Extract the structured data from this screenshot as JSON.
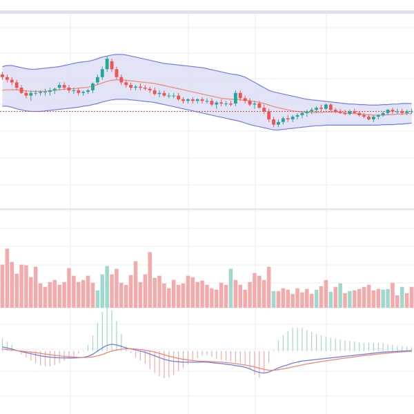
{
  "chart_data": [
    {
      "panel": "price",
      "type": "candlestick",
      "indicators": [
        "bollinger-bands",
        "moving-average"
      ],
      "ohlc": [
        [
          163.5,
          164.0,
          162.5,
          163.0
        ],
        [
          163.0,
          163.5,
          162.0,
          162.5
        ],
        [
          162.5,
          163.0,
          161.5,
          162.0
        ],
        [
          162.0,
          162.5,
          160.5,
          161.0
        ],
        [
          161.0,
          161.5,
          159.8,
          160.0
        ],
        [
          160.0,
          160.5,
          159.0,
          159.5
        ],
        [
          159.5,
          160.5,
          158.5,
          160.0
        ],
        [
          160.0,
          160.5,
          159.5,
          160.0
        ],
        [
          160.0,
          160.5,
          159.5,
          160.2
        ],
        [
          160.2,
          160.8,
          159.5,
          160.2
        ],
        [
          160.2,
          161.0,
          159.5,
          160.5
        ],
        [
          160.5,
          161.0,
          159.8,
          160.8
        ],
        [
          161.0,
          162.0,
          160.5,
          161.5
        ],
        [
          161.5,
          162.0,
          160.5,
          161.0
        ],
        [
          161.0,
          161.5,
          160.0,
          160.5
        ],
        [
          160.5,
          161.0,
          159.8,
          160.5
        ],
        [
          160.5,
          161.0,
          159.5,
          160.0
        ],
        [
          160.0,
          160.5,
          159.5,
          160.2
        ],
        [
          160.2,
          160.8,
          159.8,
          160.5
        ],
        [
          160.5,
          162.0,
          160.0,
          161.8
        ],
        [
          162.0,
          163.5,
          161.5,
          163.0
        ],
        [
          163.0,
          165.0,
          162.5,
          164.5
        ],
        [
          164.5,
          167.0,
          164.0,
          166.5
        ],
        [
          166.0,
          166.5,
          164.0,
          164.5
        ],
        [
          164.5,
          165.0,
          162.5,
          163.0
        ],
        [
          163.0,
          163.5,
          161.5,
          162.0
        ],
        [
          162.0,
          162.5,
          161.0,
          161.5
        ],
        [
          161.5,
          162.0,
          160.5,
          161.0
        ],
        [
          161.0,
          161.5,
          160.5,
          161.2
        ],
        [
          161.2,
          161.8,
          160.5,
          161.0
        ],
        [
          161.0,
          161.5,
          160.5,
          160.8
        ],
        [
          160.8,
          161.2,
          160.0,
          160.5
        ],
        [
          160.5,
          161.0,
          159.5,
          159.8
        ],
        [
          159.8,
          160.5,
          159.2,
          160.0
        ],
        [
          160.0,
          160.5,
          159.2,
          159.5
        ],
        [
          159.5,
          160.0,
          159.0,
          159.5
        ],
        [
          159.5,
          160.0,
          159.0,
          159.5
        ],
        [
          159.5,
          160.0,
          158.5,
          158.8
        ],
        [
          158.8,
          159.2,
          158.0,
          158.5
        ],
        [
          158.5,
          159.0,
          158.0,
          158.8
        ],
        [
          158.8,
          159.2,
          158.0,
          158.5
        ],
        [
          158.5,
          159.0,
          158.0,
          158.8
        ],
        [
          158.8,
          159.2,
          158.0,
          158.5
        ],
        [
          158.5,
          159.0,
          158.0,
          158.5
        ],
        [
          158.5,
          159.0,
          157.5,
          157.8
        ],
        [
          157.8,
          158.5,
          157.0,
          158.2
        ],
        [
          158.2,
          158.8,
          157.5,
          158.0
        ],
        [
          158.0,
          158.5,
          157.5,
          158.0
        ],
        [
          158.0,
          158.5,
          157.5,
          157.8
        ],
        [
          158.0,
          160.5,
          157.5,
          160.0
        ],
        [
          160.0,
          160.5,
          158.5,
          159.0
        ],
        [
          159.0,
          159.5,
          158.0,
          158.5
        ],
        [
          158.5,
          159.0,
          157.5,
          157.8
        ],
        [
          157.8,
          158.5,
          157.0,
          158.0
        ],
        [
          158.0,
          158.5,
          157.0,
          157.2
        ],
        [
          157.2,
          157.8,
          156.0,
          156.5
        ],
        [
          156.5,
          157.0,
          154.5,
          155.0
        ],
        [
          155.0,
          155.5,
          153.5,
          154.0
        ],
        [
          154.0,
          155.0,
          153.5,
          154.5
        ],
        [
          154.5,
          155.5,
          154.0,
          155.2
        ],
        [
          155.2,
          155.8,
          154.5,
          155.0
        ],
        [
          155.0,
          155.8,
          154.5,
          155.5
        ],
        [
          155.5,
          156.2,
          155.0,
          155.8
        ],
        [
          155.8,
          156.5,
          155.2,
          156.2
        ],
        [
          156.2,
          156.8,
          155.5,
          156.5
        ],
        [
          156.5,
          157.2,
          156.0,
          156.8
        ],
        [
          156.8,
          157.5,
          156.2,
          157.2
        ],
        [
          157.2,
          157.8,
          156.5,
          157.0
        ],
        [
          157.0,
          158.0,
          156.8,
          157.8
        ],
        [
          157.8,
          158.0,
          156.5,
          156.8
        ],
        [
          156.8,
          157.2,
          156.2,
          156.5
        ],
        [
          156.5,
          157.0,
          156.0,
          156.2
        ],
        [
          156.2,
          156.8,
          155.8,
          156.0
        ],
        [
          156.0,
          156.8,
          155.8,
          156.5
        ],
        [
          156.5,
          157.0,
          156.0,
          156.2
        ],
        [
          156.2,
          156.5,
          155.5,
          155.8
        ],
        [
          155.8,
          156.2,
          155.2,
          155.5
        ],
        [
          155.5,
          155.8,
          154.8,
          155.0
        ],
        [
          155.0,
          155.8,
          154.5,
          155.5
        ],
        [
          155.5,
          156.0,
          155.0,
          155.8
        ],
        [
          155.8,
          156.5,
          155.5,
          156.2
        ],
        [
          156.2,
          157.0,
          155.8,
          156.8
        ],
        [
          156.8,
          157.2,
          156.0,
          156.5
        ],
        [
          156.5,
          157.0,
          156.0,
          156.5
        ],
        [
          156.5,
          157.0,
          155.8,
          156.2
        ],
        [
          156.2,
          156.8,
          155.8,
          156.5
        ],
        [
          156.5,
          157.0,
          156.0,
          156.5
        ]
      ],
      "mid_band": [
        160.5,
        160.6,
        160.6,
        160.6,
        160.5,
        160.4,
        160.3,
        160.3,
        160.3,
        160.3,
        160.4,
        160.5,
        160.6,
        160.7,
        160.8,
        160.8,
        160.9,
        161.0,
        161.1,
        161.3,
        161.6,
        161.9,
        162.2,
        162.4,
        162.5,
        162.5,
        162.4,
        162.3,
        162.2,
        162.1,
        162.0,
        161.9,
        161.8,
        161.6,
        161.4,
        161.2,
        161.0,
        160.8,
        160.6,
        160.4,
        160.2,
        160.0,
        159.8,
        159.6,
        159.4,
        159.2,
        159.0,
        158.9,
        158.8,
        158.8,
        158.7,
        158.6,
        158.5,
        158.4,
        158.2,
        158.0,
        157.7,
        157.4,
        157.2,
        157.0,
        156.8,
        156.6,
        156.5,
        156.4,
        156.3,
        156.3,
        156.3,
        156.3,
        156.4,
        156.4,
        156.4,
        156.3,
        156.2,
        156.2,
        156.1,
        156.0,
        155.9,
        155.9,
        155.8,
        155.8,
        155.8,
        155.9,
        155.9,
        156.0,
        156.0,
        156.1,
        156.1
      ],
      "upper_band": [
        165.0,
        165.2,
        165.2,
        165.0,
        164.8,
        164.6,
        164.5,
        164.5,
        164.6,
        164.7,
        164.8,
        164.9,
        165.0,
        165.2,
        165.4,
        165.6,
        165.8,
        165.9,
        166.0,
        166.2,
        166.5,
        166.8,
        167.0,
        167.2,
        167.3,
        167.3,
        167.2,
        167.0,
        166.8,
        166.6,
        166.4,
        166.2,
        166.0,
        165.8,
        165.6,
        165.5,
        165.4,
        165.3,
        165.2,
        165.1,
        165.0,
        164.9,
        164.8,
        164.6,
        164.4,
        164.2,
        164.0,
        163.8,
        163.6,
        163.5,
        163.3,
        163.0,
        162.5,
        162.0,
        161.5,
        161.0,
        160.5,
        160.2,
        160.0,
        159.8,
        159.6,
        159.4,
        159.2,
        159.0,
        158.8,
        158.7,
        158.6,
        158.5,
        158.4,
        158.3,
        158.2,
        158.1,
        158.0,
        157.9,
        157.9,
        157.8,
        157.8,
        157.7,
        157.7,
        157.7,
        157.8,
        157.8,
        157.9,
        157.9,
        158.0,
        158.0,
        158.0
      ],
      "lower_band": [
        157.5,
        157.5,
        157.3,
        157.0,
        156.8,
        156.6,
        156.5,
        156.5,
        156.5,
        156.6,
        156.7,
        156.8,
        156.9,
        157.0,
        157.1,
        157.2,
        157.3,
        157.5,
        157.6,
        157.8,
        158.0,
        158.3,
        158.5,
        158.7,
        158.8,
        158.8,
        158.8,
        158.7,
        158.6,
        158.5,
        158.4,
        158.3,
        158.2,
        158.0,
        157.8,
        157.6,
        157.4,
        157.2,
        157.0,
        156.8,
        156.6,
        156.4,
        156.2,
        156.0,
        155.8,
        155.6,
        155.4,
        155.2,
        155.0,
        154.8,
        154.6,
        154.3,
        154.0,
        153.8,
        153.6,
        153.4,
        153.2,
        153.0,
        153.0,
        153.1,
        153.2,
        153.3,
        153.4,
        153.5,
        153.6,
        153.7,
        153.8,
        153.8,
        153.9,
        153.9,
        153.9,
        153.9,
        153.9,
        153.9,
        153.9,
        153.9,
        153.9,
        153.9,
        153.9,
        153.9,
        154.0,
        154.0,
        154.0,
        154.1,
        154.1,
        154.2,
        154.3
      ],
      "reference_line": 156.5,
      "ylim": [
        138,
        175
      ],
      "colors": {
        "up": "#26a69a",
        "down": "#ef5350",
        "band_line": "#6f7de8",
        "band_fill": "#dcdcf5",
        "mid_line": "#f0866f",
        "reference": "#d04848"
      }
    },
    {
      "panel": "volume",
      "type": "bar",
      "values": [
        62,
        85,
        66,
        49,
        62,
        61,
        44,
        59,
        35,
        30,
        37,
        40,
        33,
        37,
        57,
        46,
        37,
        40,
        46,
        36,
        25,
        48,
        60,
        48,
        56,
        36,
        33,
        47,
        67,
        37,
        48,
        80,
        43,
        46,
        35,
        28,
        40,
        33,
        35,
        46,
        44,
        37,
        39,
        33,
        28,
        26,
        36,
        33,
        56,
        40,
        33,
        26,
        37,
        50,
        46,
        40,
        59,
        24,
        24,
        28,
        26,
        20,
        28,
        22,
        27,
        20,
        26,
        31,
        40,
        23,
        30,
        35,
        21,
        24,
        25,
        27,
        30,
        33,
        25,
        27,
        26,
        27,
        36,
        18,
        30,
        21,
        30
      ],
      "directions": [
        "down",
        "down",
        "down",
        "down",
        "down",
        "down",
        "down",
        "down",
        "down",
        "down",
        "down",
        "down",
        "down",
        "down",
        "down",
        "down",
        "down",
        "down",
        "down",
        "down",
        "up",
        "up",
        "up",
        "down",
        "down",
        "down",
        "down",
        "down",
        "down",
        "down",
        "down",
        "down",
        "down",
        "down",
        "down",
        "down",
        "down",
        "down",
        "down",
        "down",
        "down",
        "down",
        "down",
        "down",
        "down",
        "down",
        "down",
        "down",
        "up",
        "down",
        "down",
        "down",
        "down",
        "down",
        "down",
        "down",
        "down",
        "up",
        "down",
        "down",
        "down",
        "down",
        "down",
        "down",
        "down",
        "down",
        "up",
        "down",
        "down",
        "up",
        "down",
        "up",
        "down",
        "up",
        "down",
        "down",
        "down",
        "down",
        "down",
        "down",
        "up",
        "up",
        "down",
        "down",
        "up",
        "down",
        "down"
      ],
      "ylim": [
        0,
        140
      ]
    },
    {
      "panel": "macd",
      "type": "line",
      "series": [
        {
          "values": [
            0.4,
            0.3,
            0.2,
            0.05,
            -0.05,
            -0.15,
            -0.25,
            -0.35,
            -0.45,
            -0.52,
            -0.58,
            -0.62,
            -0.64,
            -0.65,
            -0.66,
            -0.66,
            -0.64,
            -0.6,
            -0.5,
            -0.3,
            0.0,
            0.3,
            0.55,
            0.65,
            0.58,
            0.45,
            0.3,
            0.2,
            0.1,
            0.0,
            -0.12,
            -0.28,
            -0.45,
            -0.62,
            -0.78,
            -0.9,
            -0.98,
            -1.02,
            -1.05,
            -1.06,
            -1.06,
            -1.05,
            -1.04,
            -1.05,
            -1.1,
            -1.15,
            -1.2,
            -1.25,
            -1.3,
            -1.38,
            -1.45,
            -1.55,
            -1.7,
            -1.9,
            -2.05,
            -2.1,
            -2.0,
            -1.8,
            -1.6,
            -1.45,
            -1.3,
            -1.15,
            -1.05,
            -0.95,
            -0.9,
            -0.85,
            -0.8,
            -0.75,
            -0.7,
            -0.65,
            -0.6,
            -0.55,
            -0.5,
            -0.45,
            -0.4,
            -0.35,
            -0.3,
            -0.25,
            -0.2,
            -0.15,
            -0.1,
            -0.08,
            -0.05,
            -0.03,
            0.0,
            0.02,
            0.04
          ],
          "color": "#6f7de8"
        },
        {
          "values": [
            0.2,
            0.15,
            0.1,
            0.05,
            0.0,
            -0.05,
            -0.1,
            -0.16,
            -0.22,
            -0.28,
            -0.34,
            -0.4,
            -0.45,
            -0.5,
            -0.54,
            -0.57,
            -0.6,
            -0.61,
            -0.6,
            -0.55,
            -0.45,
            -0.32,
            -0.15,
            0.0,
            0.1,
            0.18,
            0.22,
            0.23,
            0.2,
            0.15,
            0.08,
            0.0,
            -0.1,
            -0.22,
            -0.35,
            -0.48,
            -0.6,
            -0.7,
            -0.78,
            -0.85,
            -0.9,
            -0.94,
            -0.97,
            -0.99,
            -1.01,
            -1.03,
            -1.06,
            -1.1,
            -1.14,
            -1.2,
            -1.26,
            -1.33,
            -1.42,
            -1.52,
            -1.63,
            -1.75,
            -1.82,
            -1.82,
            -1.77,
            -1.7,
            -1.62,
            -1.52,
            -1.42,
            -1.32,
            -1.23,
            -1.15,
            -1.07,
            -1.0,
            -0.93,
            -0.86,
            -0.8,
            -0.73,
            -0.67,
            -0.61,
            -0.55,
            -0.49,
            -0.43,
            -0.38,
            -0.33,
            -0.28,
            -0.23,
            -0.19,
            -0.15,
            -0.11,
            -0.08,
            -0.05,
            -0.02
          ],
          "color": "#f0866f"
        }
      ],
      "ylim": [
        -6,
        4
      ]
    }
  ]
}
